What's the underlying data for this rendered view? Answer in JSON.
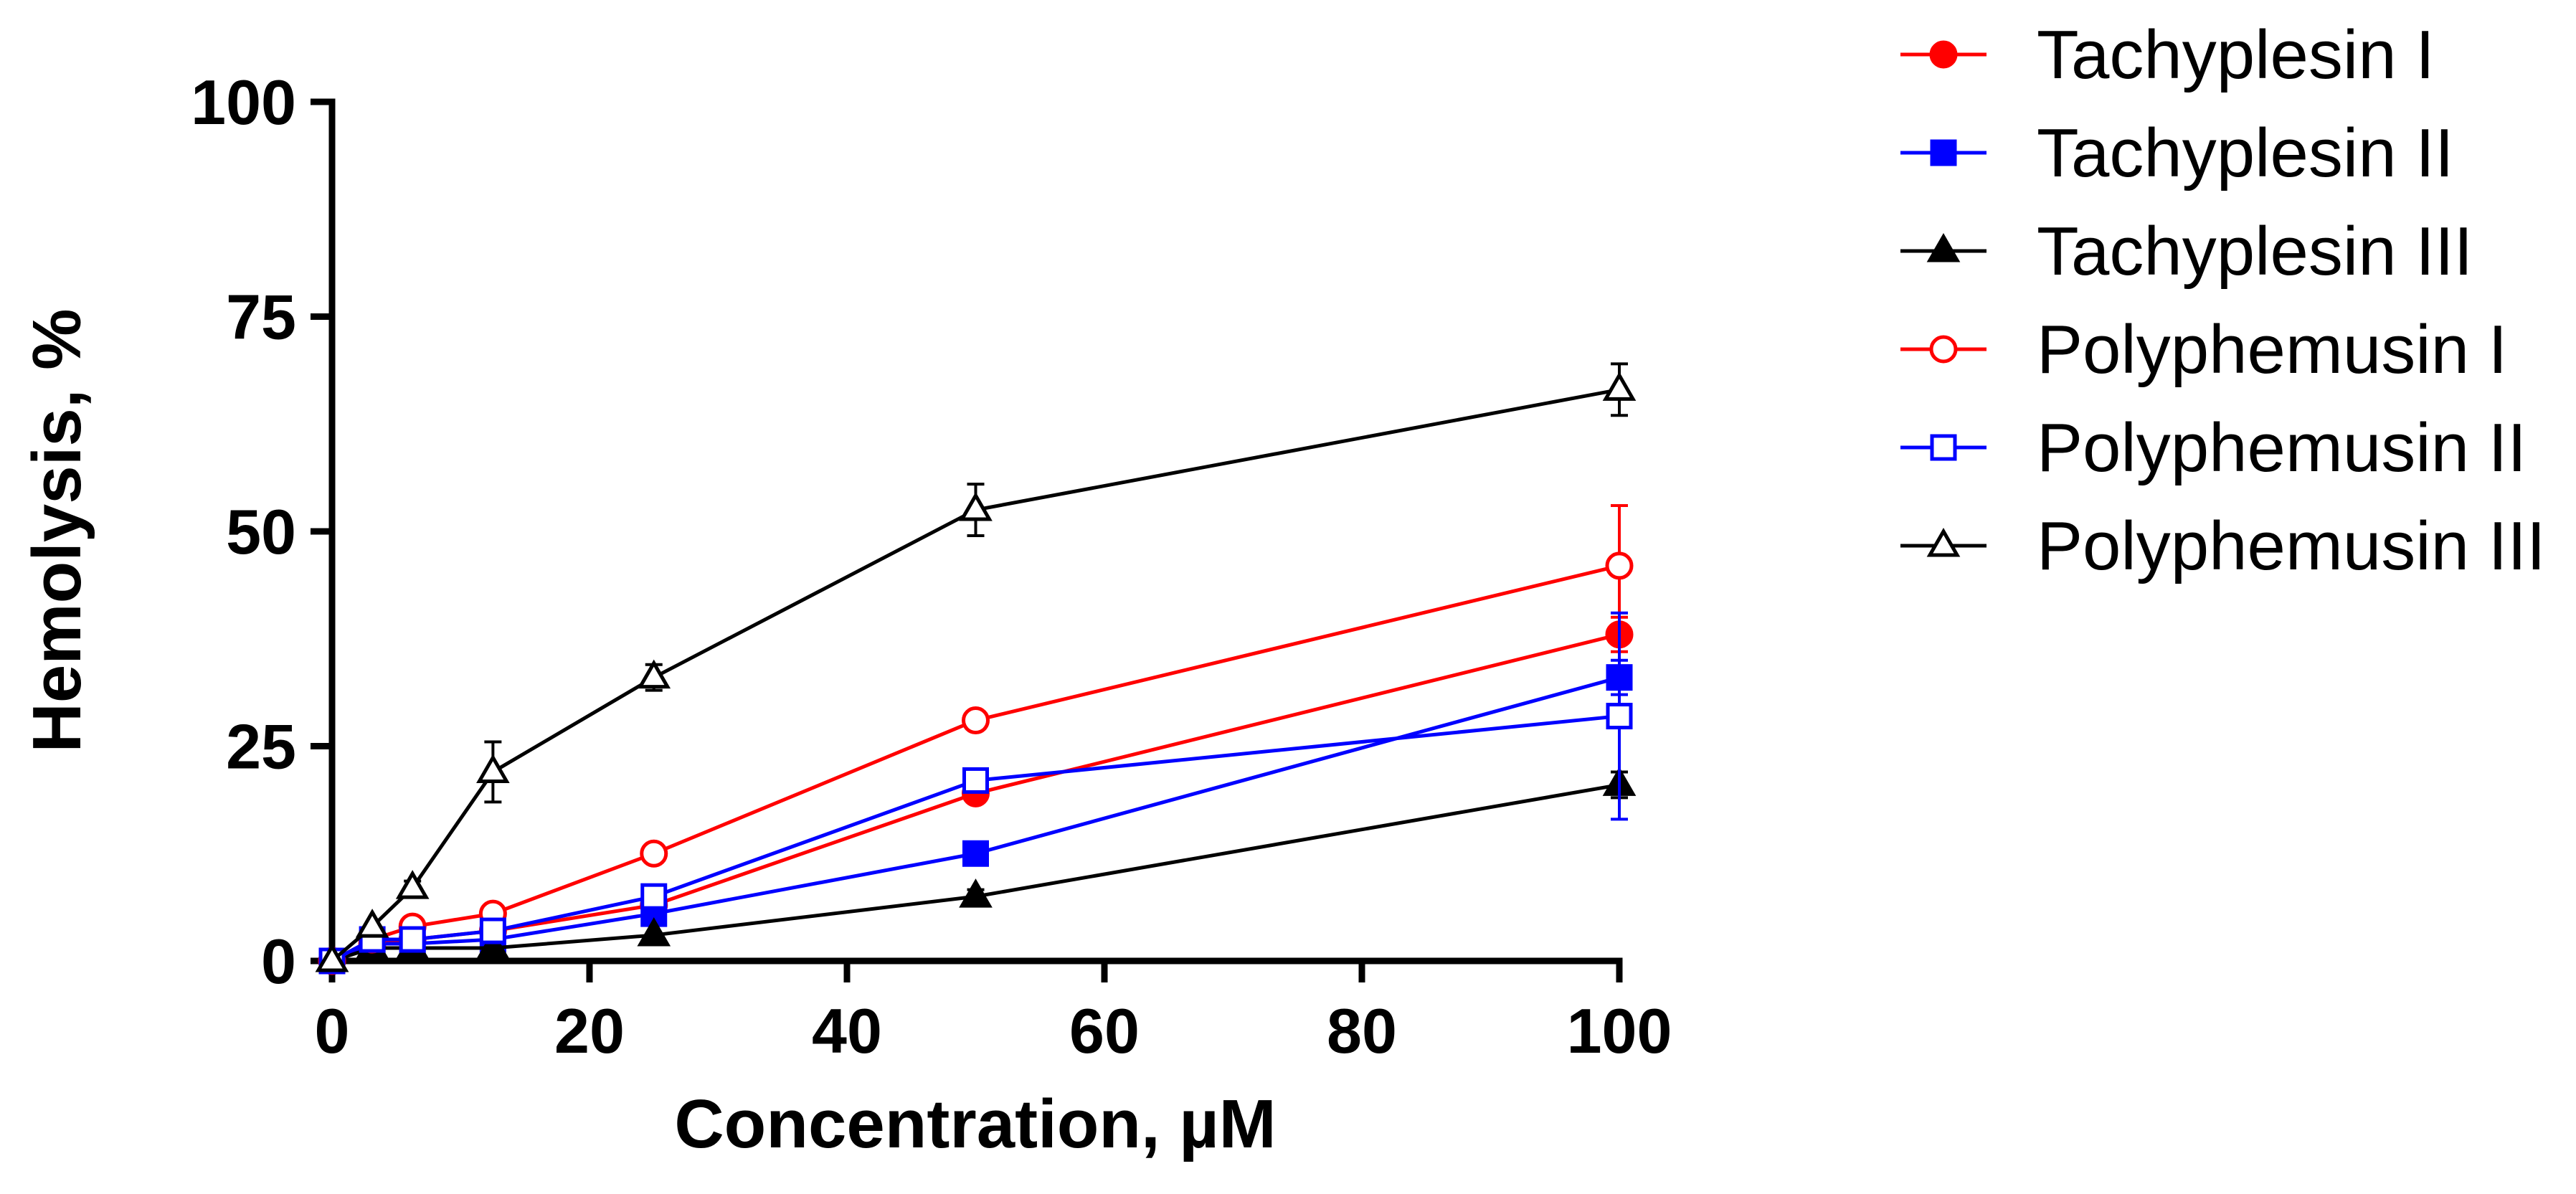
{
  "chart_data": {
    "type": "line",
    "title": "",
    "xlabel": "Concentration, µM",
    "ylabel": "Hemolysis, %",
    "xlim": [
      0,
      100
    ],
    "ylim": [
      0,
      100
    ],
    "xticks": [
      0,
      20,
      40,
      60,
      80,
      100
    ],
    "yticks": [
      0,
      25,
      50,
      75,
      100
    ],
    "x": [
      0,
      3.125,
      6.25,
      12.5,
      25,
      50,
      100
    ],
    "legend_position": "top-right, outside plot",
    "series": [
      {
        "name": "Tachyplesin I",
        "color": "#ff0000",
        "marker": "circle",
        "filled": true,
        "values": [
          0,
          2,
          2.5,
          3.5,
          6.5,
          19.5,
          38
        ],
        "errors": [
          0,
          0.3,
          0.3,
          0.4,
          0.6,
          1,
          2
        ]
      },
      {
        "name": "Tachyplesin II",
        "color": "#0000ff",
        "marker": "square",
        "filled": true,
        "values": [
          0,
          2,
          2,
          2.5,
          5.5,
          12.5,
          33
        ],
        "errors": [
          0,
          0.3,
          0.3,
          0.4,
          0.5,
          1,
          2
        ]
      },
      {
        "name": "Tachyplesin III",
        "color": "#000000",
        "marker": "triangle",
        "filled": true,
        "values": [
          0,
          1.5,
          1.5,
          1.5,
          3,
          7.5,
          20.5
        ],
        "errors": [
          0,
          0.2,
          0.2,
          0.3,
          0.4,
          0.8,
          1.5
        ]
      },
      {
        "name": "Polyphemusin I",
        "color": "#ff0000",
        "marker": "circle",
        "filled": false,
        "values": [
          0,
          2.5,
          4,
          5.5,
          12.5,
          28,
          46
        ],
        "errors": [
          0,
          0.3,
          0.4,
          0.5,
          0.8,
          1,
          7
        ]
      },
      {
        "name": "Polyphemusin II",
        "color": "#0000ff",
        "marker": "square",
        "filled": false,
        "values": [
          0,
          2.5,
          2.5,
          3.5,
          7.5,
          21,
          28.5
        ],
        "errors": [
          0,
          0.3,
          0.3,
          0.4,
          0.6,
          1,
          12
        ]
      },
      {
        "name": "Polyphemusin III",
        "color": "#000000",
        "marker": "triangle",
        "filled": false,
        "values": [
          0,
          4,
          8.5,
          22,
          33,
          52.5,
          66.5
        ],
        "errors": [
          0,
          0.5,
          0.8,
          3.5,
          1.5,
          3,
          3
        ]
      }
    ]
  }
}
